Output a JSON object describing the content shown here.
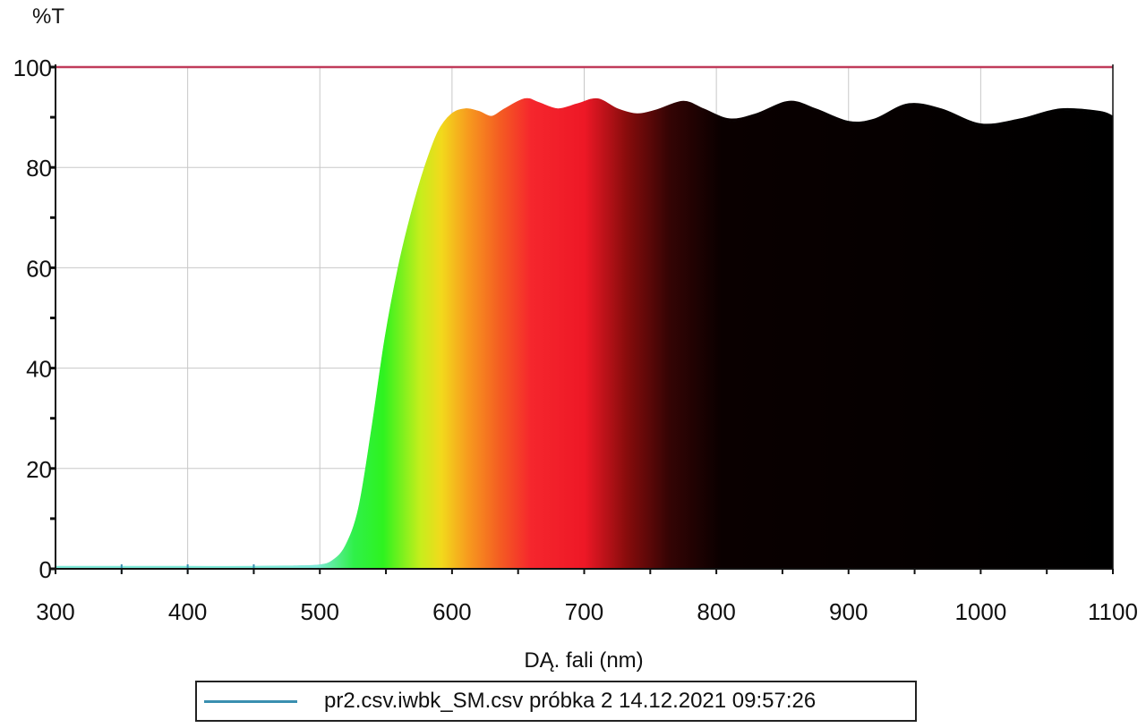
{
  "chart_data": {
    "type": "area",
    "title": "",
    "ylabel": "%T",
    "xlabel": "DĄ. fali (nm)",
    "xlim": [
      300,
      1100
    ],
    "ylim": [
      0,
      100
    ],
    "xticks": [
      "300",
      "400",
      "500",
      "600",
      "700",
      "800",
      "900",
      "1000",
      "1100"
    ],
    "yticks": [
      "0",
      "20",
      "40",
      "60",
      "80",
      "100"
    ],
    "grid": true,
    "legend_position": "bottom",
    "series": [
      {
        "name": "pr2.csv.iwbk_SM.csv  próbka 2 14.12.2021 09:57:26",
        "color": "#3a8fb0",
        "fill": "visible-spectrum-gradient",
        "x": [
          300,
          350,
          400,
          450,
          480,
          500,
          510,
          520,
          530,
          540,
          550,
          560,
          570,
          580,
          590,
          600,
          610,
          620,
          630,
          640,
          655,
          665,
          680,
          695,
          710,
          725,
          740,
          755,
          775,
          790,
          810,
          830,
          855,
          875,
          900,
          920,
          945,
          970,
          1000,
          1030,
          1060,
          1090,
          1100
        ],
        "y": [
          0.3,
          0.3,
          0.3,
          0.3,
          0.4,
          0.6,
          1.5,
          4.5,
          12,
          28,
          46,
          60,
          71,
          80,
          87,
          90.5,
          91.5,
          91,
          90,
          91.5,
          93.5,
          92.8,
          91.5,
          92.5,
          93.5,
          91.5,
          90.5,
          91.3,
          93,
          91.5,
          89.5,
          90.5,
          93,
          91.5,
          89,
          89.5,
          92.5,
          91.5,
          88.5,
          89.5,
          91.5,
          91,
          90
        ]
      },
      {
        "name": "",
        "color": "#c03b5a",
        "x": [
          300,
          1100
        ],
        "y": [
          100,
          100
        ]
      }
    ]
  }
}
